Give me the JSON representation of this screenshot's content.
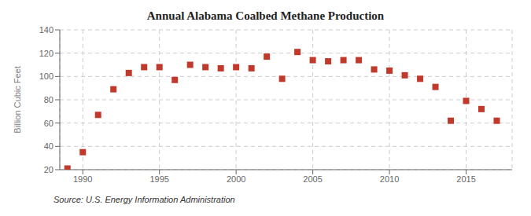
{
  "chart_data": {
    "type": "scatter",
    "title": "Annual Alabama Coalbed Methane Production",
    "y_label": "Billion Cubic Feet",
    "source": "Source: U.S. Energy Information Administration",
    "x": [
      1989,
      1990,
      1991,
      1992,
      1993,
      1994,
      1995,
      1996,
      1997,
      1998,
      1999,
      2000,
      2001,
      2002,
      2003,
      2004,
      2005,
      2006,
      2007,
      2008,
      2009,
      2010,
      2011,
      2012,
      2013,
      2014,
      2015,
      2016,
      2017
    ],
    "values": [
      21,
      35,
      67,
      89,
      103,
      108,
      108,
      97,
      110,
      108,
      107,
      108,
      107,
      117,
      98,
      121,
      114,
      113,
      114,
      114,
      106,
      105,
      101,
      98,
      91,
      62,
      79,
      72,
      62
    ],
    "color": "#c0392b",
    "marker": "square",
    "xlim": [
      1988.5,
      2018
    ],
    "ylim": [
      20,
      140
    ],
    "xticks": [
      1990,
      1995,
      2000,
      2005,
      2010,
      2015
    ],
    "yticks": [
      20,
      40,
      60,
      80,
      100,
      120,
      140
    ],
    "grid": true
  }
}
